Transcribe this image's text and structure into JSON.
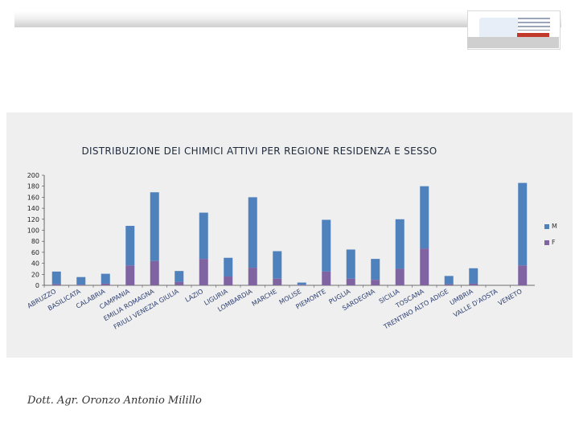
{
  "chart_data": {
    "type": "bar",
    "stacked": true,
    "title": "DISTRIBUZIONE DEI CHIMICI ATTIVI PER REGIONE RESIDENZA E SESSO",
    "categories": [
      "ABRUZZO",
      "BASILICATA",
      "CALABRIA",
      "CAMPANIA",
      "EMILIA ROMAGNA",
      "FRIULI VENEZIA GIULIA",
      "LAZIO",
      "LIGURIA",
      "LOMBARDIA",
      "MARCHE",
      "MOLISE",
      "PIEMONTE",
      "PUGLIA",
      "SARDEGNA",
      "SICILIA",
      "TOSCANA",
      "TRENTINO ALTO ADIGE",
      "UMBRIA",
      "VALLE D'AOSTA",
      "VENETO"
    ],
    "series": [
      {
        "name": "F",
        "color": "#8064a2",
        "values": [
          2,
          1,
          3,
          36,
          44,
          6,
          48,
          16,
          32,
          12,
          1,
          25,
          12,
          10,
          30,
          67,
          2,
          3,
          0,
          36
        ]
      },
      {
        "name": "M",
        "color": "#4f81bd",
        "values": [
          23,
          14,
          18,
          72,
          125,
          20,
          84,
          34,
          128,
          50,
          4,
          94,
          53,
          38,
          90,
          113,
          15,
          28,
          0,
          150
        ]
      }
    ],
    "ylim": [
      0,
      200
    ],
    "yticks": [
      0,
      20,
      40,
      60,
      80,
      100,
      120,
      140,
      160,
      180,
      200
    ],
    "grid": false,
    "legend_position": "right"
  },
  "legend": {
    "m_label": "M",
    "f_label": "F"
  },
  "author": "Dott. Agr. Oronzo Antonio Milillo"
}
